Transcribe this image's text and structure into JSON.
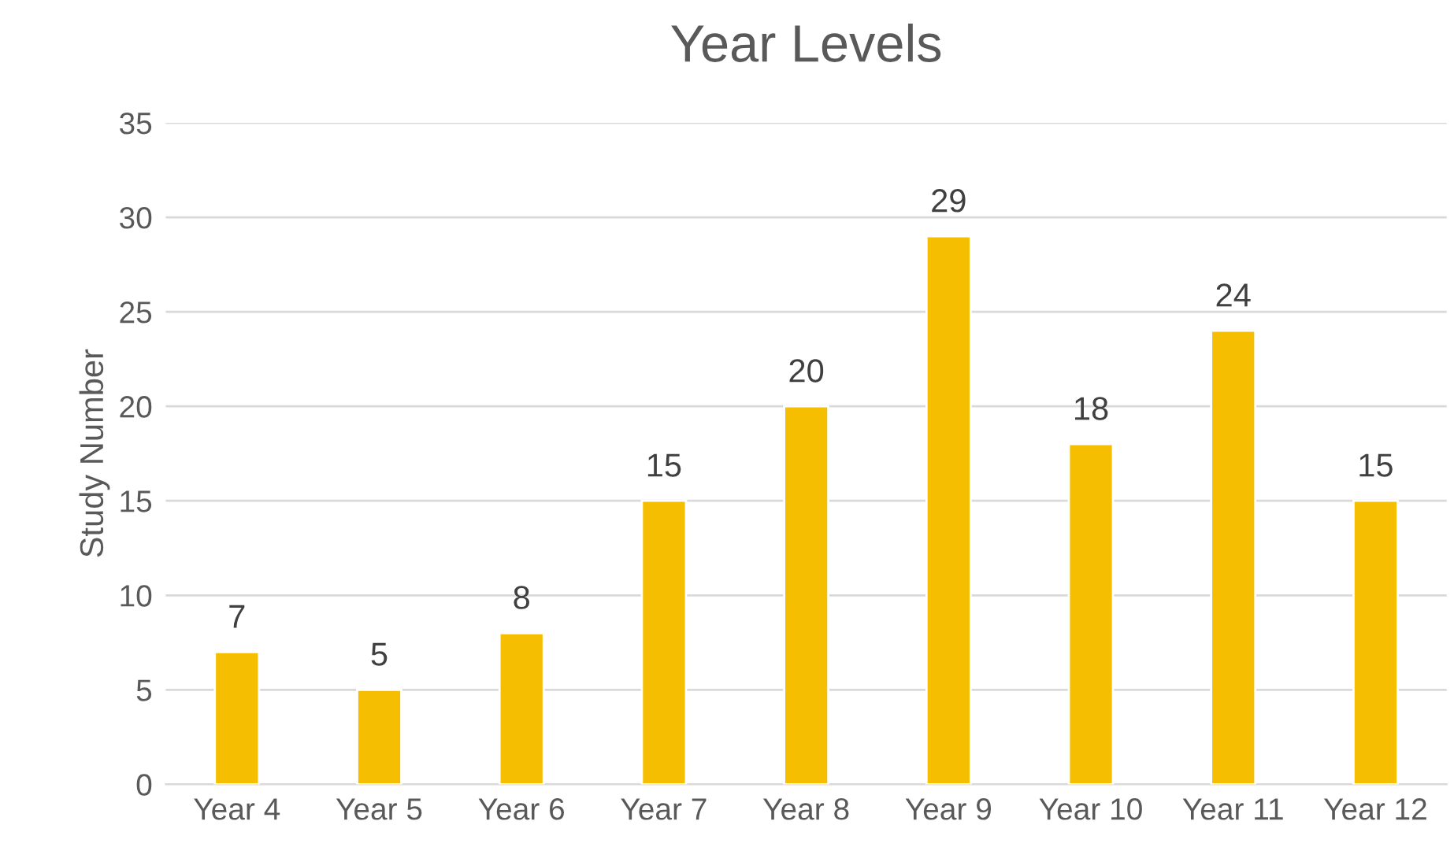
{
  "chart_data": {
    "type": "bar",
    "title": "Year Levels",
    "ylabel": "Study Number",
    "categories": [
      "Year 4",
      "Year 5",
      "Year 6",
      "Year 7",
      "Year 8",
      "Year 9",
      "Year 10",
      "Year 11",
      "Year 12"
    ],
    "values": [
      7,
      5,
      8,
      15,
      20,
      29,
      18,
      24,
      15
    ],
    "color": "#f5be00",
    "ylim": [
      0,
      35
    ],
    "yticks": [
      0,
      5,
      10,
      15,
      20,
      25,
      30,
      35
    ],
    "grid": "y",
    "data_labels": true,
    "legend": false
  }
}
